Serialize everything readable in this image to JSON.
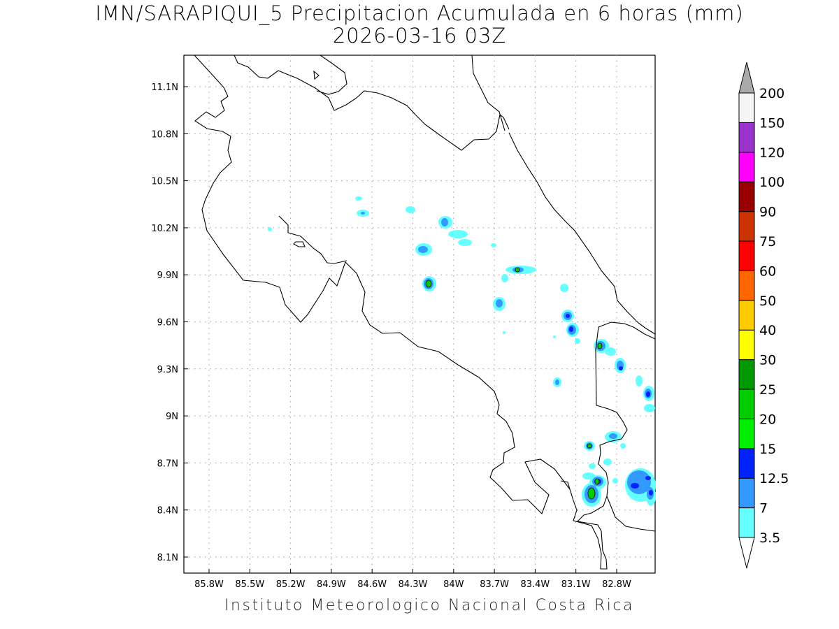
{
  "title": "IMN/SARAPIQUI_5 Precipitacion Acumulada en 6 horas (mm)",
  "subtitle": "2026-03-16 03Z",
  "footer": "Instituto Meteorologico Nacional Costa Rica",
  "map": {
    "lon_ticks": [
      "85.8W",
      "85.5W",
      "85.2W",
      "84.9W",
      "84.6W",
      "84.3W",
      "84W",
      "83.7W",
      "83.4W",
      "83.1W",
      "82.8W"
    ],
    "lat_ticks": [
      "11.1N",
      "10.8N",
      "10.5N",
      "10.2N",
      "9.9N",
      "9.6N",
      "9.3N",
      "9N",
      "8.7N",
      "8.4N",
      "8.1N"
    ],
    "grid": true
  },
  "colorbar": {
    "levels": [
      "3.5",
      "7",
      "12.5",
      "15",
      "20",
      "25",
      "30",
      "40",
      "50",
      "60",
      "75",
      "90",
      "100",
      "120",
      "150",
      "200"
    ],
    "colors": [
      "#66ffff",
      "#3399ff",
      "#0022ff",
      "#00ee00",
      "#00cc00",
      "#009900",
      "#ffff00",
      "#ffcc00",
      "#ff6600",
      "#ff0000",
      "#cc3300",
      "#990000",
      "#ff00ff",
      "#9933cc",
      "#f5f5f5"
    ],
    "top_arrow_color": "#aaaaaa",
    "bottom_arrow_color": "#ffffff"
  }
}
